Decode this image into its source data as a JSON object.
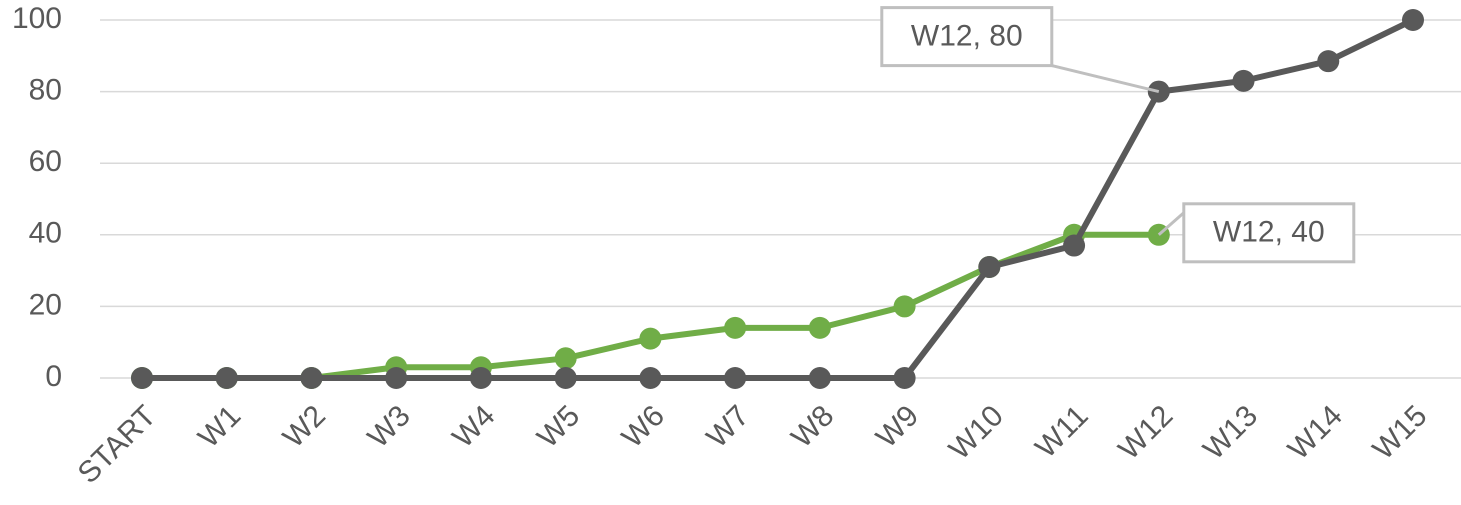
{
  "chart_data": {
    "type": "line",
    "categories": [
      "START",
      "W1",
      "W2",
      "W3",
      "W4",
      "W5",
      "W6",
      "W7",
      "W8",
      "W9",
      "W10",
      "W11",
      "W12",
      "W13",
      "W14",
      "W15"
    ],
    "series": [
      {
        "color": "#70ad47",
        "values": [
          0,
          0,
          0,
          3,
          3,
          5.5,
          11,
          14,
          14,
          20,
          31,
          40,
          40,
          null,
          null,
          null
        ],
        "value_labels": [
          null,
          null,
          null,
          null,
          null,
          null,
          null,
          null,
          null,
          null,
          null,
          null,
          "W12, 40",
          null,
          null,
          null
        ]
      },
      {
        "color": "#595959",
        "values": [
          0,
          0,
          0,
          0,
          0,
          0,
          0,
          0,
          0,
          0,
          31,
          37,
          80,
          83,
          88.5,
          100
        ],
        "value_labels": [
          null,
          null,
          null,
          null,
          null,
          null,
          null,
          null,
          null,
          null,
          null,
          null,
          "W12, 80",
          null,
          null,
          null
        ]
      }
    ],
    "ylim": [
      0,
      100
    ],
    "yticks": [
      0,
      20,
      40,
      60,
      80,
      100
    ],
    "grid": true
  }
}
